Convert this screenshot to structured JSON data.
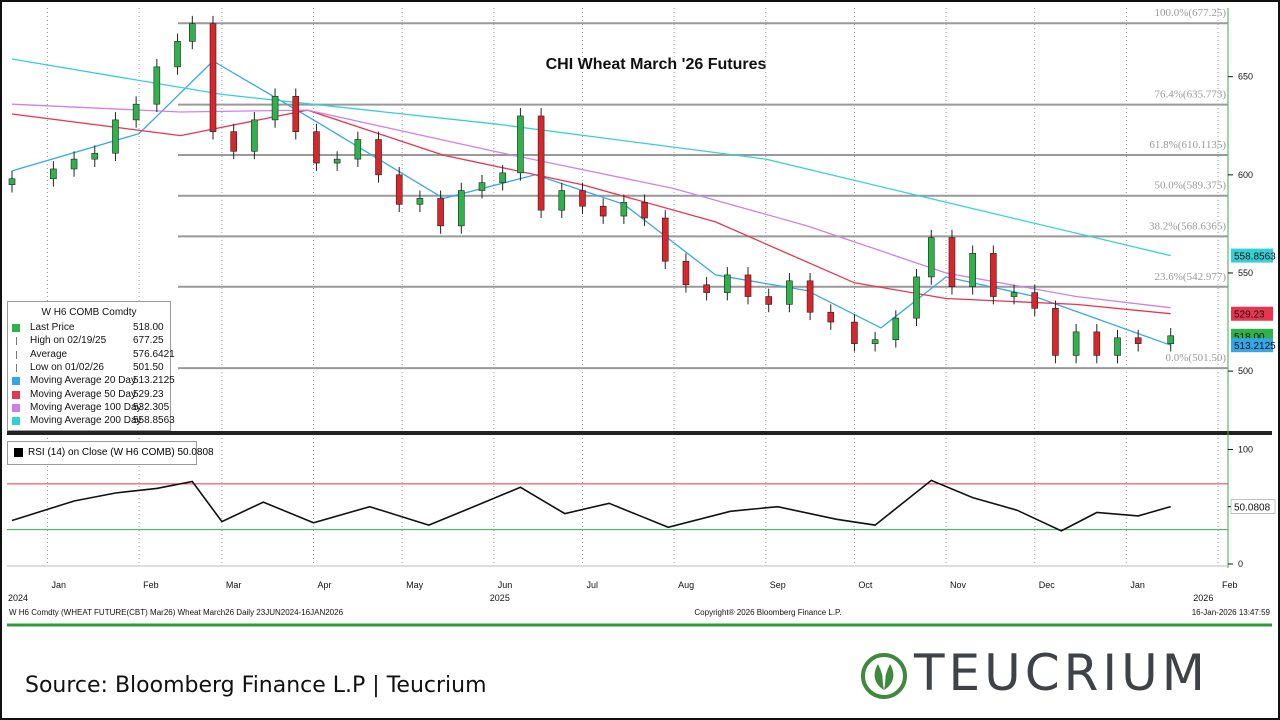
{
  "chart_data": {
    "type": "candlestick",
    "title": "CHI Wheat March '26 Futures",
    "ylim": [
      470,
      685
    ],
    "yticks": [
      500,
      550,
      600,
      650
    ],
    "xlabels": [
      {
        "label": "Jan",
        "date": "2025-01-01"
      },
      {
        "label": "Feb",
        "date": "2025-02-01"
      },
      {
        "label": "Mar",
        "date": "2025-03-01"
      },
      {
        "label": "Apr",
        "date": "2025-04-01"
      },
      {
        "label": "May",
        "date": "2025-05-01"
      },
      {
        "label": "Jun",
        "date": "2025-06-01"
      },
      {
        "label": "Jul",
        "date": "2025-07-01"
      },
      {
        "label": "Aug",
        "date": "2025-08-01"
      },
      {
        "label": "Sep",
        "date": "2025-09-01"
      },
      {
        "label": "Oct",
        "date": "2025-10-01"
      },
      {
        "label": "Nov",
        "date": "2025-11-01"
      },
      {
        "label": "Dec",
        "date": "2025-12-01"
      },
      {
        "label": "Jan",
        "date": "2026-01-01"
      },
      {
        "label": "Feb",
        "date": "2026-02-01"
      }
    ],
    "years": [
      {
        "label": "2024",
        "date": "2024-12-20"
      },
      {
        "label": "2025",
        "date": "2025-06-01"
      },
      {
        "label": "2026",
        "date": "2026-01-25"
      }
    ],
    "price_close": [
      {
        "date": "2024-12-20",
        "value": 598
      },
      {
        "date": "2025-01-03",
        "value": 603
      },
      {
        "date": "2025-01-10",
        "value": 608
      },
      {
        "date": "2025-01-17",
        "value": 611
      },
      {
        "date": "2025-01-24",
        "value": 628
      },
      {
        "date": "2025-01-31",
        "value": 636
      },
      {
        "date": "2025-02-07",
        "value": 655
      },
      {
        "date": "2025-02-14",
        "value": 668
      },
      {
        "date": "2025-02-19",
        "value": 677
      },
      {
        "date": "2025-02-26",
        "value": 622
      },
      {
        "date": "2025-03-05",
        "value": 612
      },
      {
        "date": "2025-03-12",
        "value": 628
      },
      {
        "date": "2025-03-19",
        "value": 640
      },
      {
        "date": "2025-03-26",
        "value": 622
      },
      {
        "date": "2025-04-02",
        "value": 606
      },
      {
        "date": "2025-04-09",
        "value": 608
      },
      {
        "date": "2025-04-16",
        "value": 618
      },
      {
        "date": "2025-04-23",
        "value": 600
      },
      {
        "date": "2025-04-30",
        "value": 585
      },
      {
        "date": "2025-05-07",
        "value": 588
      },
      {
        "date": "2025-05-14",
        "value": 574
      },
      {
        "date": "2025-05-21",
        "value": 592
      },
      {
        "date": "2025-05-28",
        "value": 596
      },
      {
        "date": "2025-06-04",
        "value": 601
      },
      {
        "date": "2025-06-10",
        "value": 630
      },
      {
        "date": "2025-06-17",
        "value": 582
      },
      {
        "date": "2025-06-24",
        "value": 592
      },
      {
        "date": "2025-07-01",
        "value": 584
      },
      {
        "date": "2025-07-08",
        "value": 579
      },
      {
        "date": "2025-07-15",
        "value": 586
      },
      {
        "date": "2025-07-22",
        "value": 578
      },
      {
        "date": "2025-07-29",
        "value": 556
      },
      {
        "date": "2025-08-05",
        "value": 544
      },
      {
        "date": "2025-08-12",
        "value": 540
      },
      {
        "date": "2025-08-19",
        "value": 549
      },
      {
        "date": "2025-08-26",
        "value": 538
      },
      {
        "date": "2025-09-02",
        "value": 534
      },
      {
        "date": "2025-09-09",
        "value": 546
      },
      {
        "date": "2025-09-16",
        "value": 530
      },
      {
        "date": "2025-09-23",
        "value": 525
      },
      {
        "date": "2025-10-01",
        "value": 514
      },
      {
        "date": "2025-10-08",
        "value": 516
      },
      {
        "date": "2025-10-15",
        "value": 527
      },
      {
        "date": "2025-10-22",
        "value": 548
      },
      {
        "date": "2025-10-27",
        "value": 568
      },
      {
        "date": "2025-11-03",
        "value": 543
      },
      {
        "date": "2025-11-10",
        "value": 560
      },
      {
        "date": "2025-11-17",
        "value": 538
      },
      {
        "date": "2025-11-24",
        "value": 540
      },
      {
        "date": "2025-12-01",
        "value": 532
      },
      {
        "date": "2025-12-08",
        "value": 508
      },
      {
        "date": "2025-12-15",
        "value": 520
      },
      {
        "date": "2025-12-22",
        "value": 508
      },
      {
        "date": "2025-12-29",
        "value": 517
      },
      {
        "date": "2026-01-05",
        "value": 514
      },
      {
        "date": "2026-01-16",
        "value": 518
      }
    ],
    "moving_averages": [
      {
        "name": "Moving Average 20 Day",
        "color": "#35a7e8",
        "points": [
          {
            "date": "2024-12-20",
            "value": 602
          },
          {
            "date": "2025-02-01",
            "value": 621
          },
          {
            "date": "2025-02-26",
            "value": 658
          },
          {
            "date": "2025-04-01",
            "value": 628
          },
          {
            "date": "2025-05-15",
            "value": 588
          },
          {
            "date": "2025-06-15",
            "value": 600
          },
          {
            "date": "2025-07-15",
            "value": 585
          },
          {
            "date": "2025-08-15",
            "value": 549
          },
          {
            "date": "2025-09-15",
            "value": 541
          },
          {
            "date": "2025-10-10",
            "value": 522
          },
          {
            "date": "2025-11-01",
            "value": 548
          },
          {
            "date": "2025-12-01",
            "value": 538
          },
          {
            "date": "2026-01-16",
            "value": 513.2125
          }
        ]
      },
      {
        "name": "Moving Average 50 Day",
        "color": "#e8344e",
        "points": [
          {
            "date": "2024-12-20",
            "value": 631
          },
          {
            "date": "2025-02-15",
            "value": 620
          },
          {
            "date": "2025-03-30",
            "value": 633
          },
          {
            "date": "2025-05-15",
            "value": 610
          },
          {
            "date": "2025-07-01",
            "value": 595
          },
          {
            "date": "2025-08-15",
            "value": 576
          },
          {
            "date": "2025-10-01",
            "value": 545
          },
          {
            "date": "2025-11-01",
            "value": 537
          },
          {
            "date": "2025-12-15",
            "value": 534
          },
          {
            "date": "2026-01-16",
            "value": 529.23
          }
        ]
      },
      {
        "name": "Moving Average 100 Day",
        "color": "#cf80e8",
        "points": [
          {
            "date": "2024-12-20",
            "value": 636
          },
          {
            "date": "2025-02-15",
            "value": 632
          },
          {
            "date": "2025-03-30",
            "value": 633
          },
          {
            "date": "2025-06-01",
            "value": 612
          },
          {
            "date": "2025-08-01",
            "value": 593
          },
          {
            "date": "2025-09-15",
            "value": 574
          },
          {
            "date": "2025-11-01",
            "value": 550
          },
          {
            "date": "2025-12-15",
            "value": 538
          },
          {
            "date": "2026-01-16",
            "value": 532.305
          }
        ]
      },
      {
        "name": "Moving Average 200 Day",
        "color": "#33d0d6",
        "points": [
          {
            "date": "2024-12-20",
            "value": 659
          },
          {
            "date": "2025-03-01",
            "value": 641
          },
          {
            "date": "2025-06-01",
            "value": 626
          },
          {
            "date": "2025-09-01",
            "value": 608
          },
          {
            "date": "2025-11-01",
            "value": 586
          },
          {
            "date": "2026-01-16",
            "value": 558.8563
          }
        ]
      }
    ],
    "fibonacci_levels": [
      {
        "label": "100.0%(677.25)",
        "value": 677.25
      },
      {
        "label": "76.4%(635.773)",
        "value": 635.773
      },
      {
        "label": "61.8%(610.1135)",
        "value": 610.1135
      },
      {
        "label": "50.0%(589.375)",
        "value": 589.375
      },
      {
        "label": "38.2%(568.6365)",
        "value": 568.6365
      },
      {
        "label": "23.6%(542.977)",
        "value": 542.977
      },
      {
        "label": "0.0%(501.50)",
        "value": 501.5
      }
    ],
    "axis_badges": [
      {
        "text": "558.8563",
        "value": 558.8563,
        "color": "#33d0d6"
      },
      {
        "text": "529.23",
        "value": 529.23,
        "color": "#e8344e"
      },
      {
        "text": "518.00",
        "value": 518.0,
        "color": "#2fb24a"
      },
      {
        "text": "513.2125",
        "value": 513.2125,
        "color": "#35a7e8"
      }
    ],
    "rsi": {
      "name": "RSI (14)",
      "ylim": [
        0,
        110
      ],
      "yticks": [
        0,
        50,
        100
      ],
      "bands": [
        30,
        70
      ],
      "current": "50.0808",
      "points": [
        {
          "date": "2024-12-20",
          "value": 38
        },
        {
          "date": "2025-01-10",
          "value": 55
        },
        {
          "date": "2025-01-24",
          "value": 62
        },
        {
          "date": "2025-02-07",
          "value": 66
        },
        {
          "date": "2025-02-19",
          "value": 72
        },
        {
          "date": "2025-03-01",
          "value": 37
        },
        {
          "date": "2025-03-15",
          "value": 54
        },
        {
          "date": "2025-04-01",
          "value": 36
        },
        {
          "date": "2025-04-20",
          "value": 50
        },
        {
          "date": "2025-05-10",
          "value": 34
        },
        {
          "date": "2025-05-28",
          "value": 53
        },
        {
          "date": "2025-06-10",
          "value": 67
        },
        {
          "date": "2025-06-25",
          "value": 44
        },
        {
          "date": "2025-07-10",
          "value": 53
        },
        {
          "date": "2025-07-30",
          "value": 32
        },
        {
          "date": "2025-08-20",
          "value": 46
        },
        {
          "date": "2025-09-05",
          "value": 50
        },
        {
          "date": "2025-09-25",
          "value": 39
        },
        {
          "date": "2025-10-08",
          "value": 34
        },
        {
          "date": "2025-10-27",
          "value": 73
        },
        {
          "date": "2025-11-10",
          "value": 58
        },
        {
          "date": "2025-11-25",
          "value": 47
        },
        {
          "date": "2025-12-10",
          "value": 29
        },
        {
          "date": "2025-12-22",
          "value": 45
        },
        {
          "date": "2026-01-05",
          "value": 42
        },
        {
          "date": "2026-01-16",
          "value": 50.08
        }
      ]
    },
    "legend": {
      "title": "W H6 COMB Comdty",
      "rows": [
        {
          "label": "Last Price",
          "value": "518.00",
          "color": "#2fb24a",
          "marker": "box"
        },
        {
          "label": "High on 02/19/25",
          "value": "677.25",
          "color": "#777777",
          "marker": "tick"
        },
        {
          "label": "Average",
          "value": "576.6421",
          "color": "#777777",
          "marker": "cross"
        },
        {
          "label": "Low on 01/02/26",
          "value": "501.50",
          "color": "#777777",
          "marker": "tick"
        },
        {
          "label": "Moving Average 20 Day",
          "value": "513.2125",
          "color": "#35a7e8",
          "marker": "box"
        },
        {
          "label": "Moving Average 50 Day",
          "value": "529.23",
          "color": "#e8344e",
          "marker": "box"
        },
        {
          "label": "Moving Average 100 Day",
          "value": "532.305",
          "color": "#cf80e8",
          "marker": "box"
        },
        {
          "label": "Moving Average 200 Day",
          "value": "558.8563",
          "color": "#33d0d6",
          "marker": "box"
        }
      ]
    },
    "rsi_legend": "RSI (14)  on Close (W H6 COMB) 50.0808",
    "bottom_left": "W H6 Comdty (WHEAT FUTURE(CBT) Mar26) Wheat March26 Daily 23JUN2024-16JAN2026",
    "bottom_center": "Copyright® 2026 Bloomberg Finance L.P.",
    "bottom_right": "16-Jan-2026 13:47:59",
    "colors": {
      "up": "#2fb24a",
      "down": "#d8262b",
      "grid": "#9a9a9a",
      "fib": "#999999",
      "axis": "#2fb24a"
    }
  },
  "footer": {
    "source": "Source: Bloomberg Finance L.P | Teucrium",
    "logo_text": "TEUCRIUM",
    "logo_color": "#3e8a3c"
  }
}
